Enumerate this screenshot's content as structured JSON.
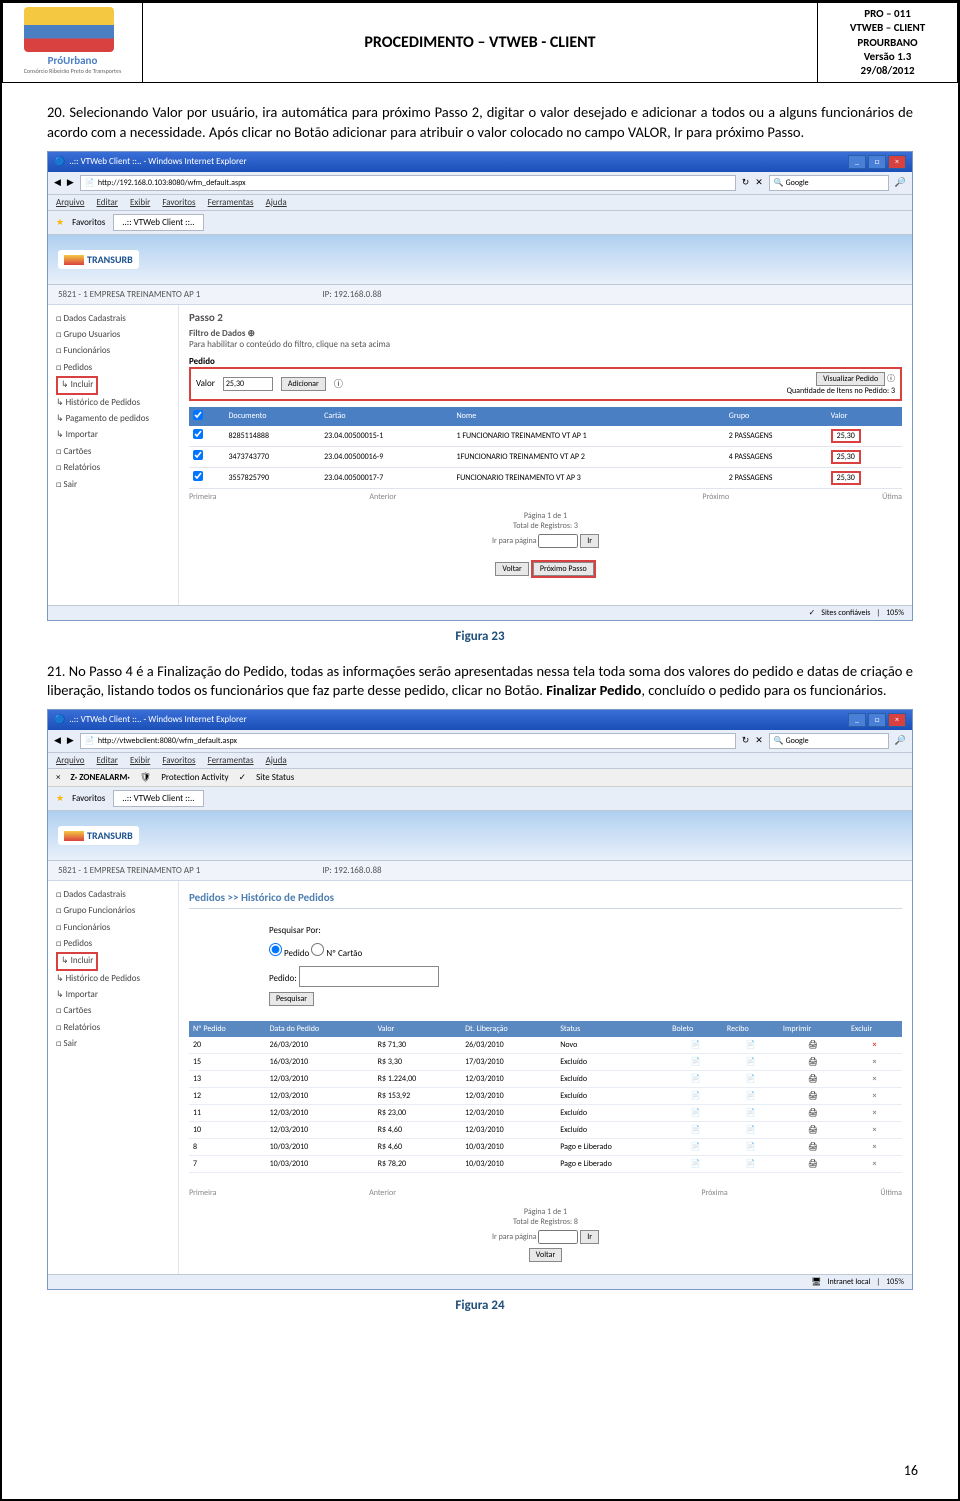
{
  "header": {
    "logo_name": "PróUrbano",
    "logo_sub": "Consórcio Ribeirão Preto de Transportes",
    "title": "PROCEDIMENTO – VTWEB - CLIENT",
    "meta_lines": [
      "PRO – 011",
      "VTWEB – CLIENT",
      "PROURBANO",
      "Versão 1.3",
      "29/08/2012"
    ]
  },
  "para20": {
    "num": "20.",
    "text": "Selecionando Valor por usuário, ira automática para próximo Passo 2, digitar o valor desejado e adicionar a todos ou a alguns funcionários de acordo com a necessidade. Após clicar no Botão adicionar para atribuir o valor colocado no campo VALOR, Ir para próximo Passo."
  },
  "fig23": {
    "caption": "Figura 23",
    "window_title": "..:: VTWeb Client ::.. - Windows Internet Explorer",
    "url": "http://192.168.0.103:8080/wfm_default.aspx",
    "search_placeholder": "Google",
    "menu": [
      "Arquivo",
      "Editar",
      "Exibir",
      "Favoritos",
      "Ferramentas",
      "Ajuda"
    ],
    "fav_label": "Favoritos",
    "fav_tab": "..:: VTWeb Client ::..",
    "banner_logo": "TRANSURB",
    "company": "5821 - 1 EMPRESA TREINAMENTO AP 1",
    "ip": "IP: 192.168.0.88",
    "sidebar": [
      "□ Dados Cadastrais",
      "□ Grupo Usuarios",
      "□ Funcionários",
      "□ Pedidos",
      "↳ Incluir",
      "↳ Histórico de Pedidos",
      "↳ Pagamento de pedidos",
      "↳ Importar",
      "□ Cartões",
      "□ Relatórios",
      "□ Sair"
    ],
    "passo": "Passo 2",
    "filtro_title": "Filtro de Dados ⊕",
    "filtro_sub": "Para habilitar o conteúdo do filtro, clique na seta acima",
    "pedido_label": "Pedido",
    "valor_label": "Valor",
    "valor_input": "25,30",
    "adicionar": "Adicionar",
    "vis_label": "Visualizar Pedido",
    "vis_sub": "Quantidade de Itens no Pedido: 3",
    "table_headers": [
      "☑",
      "Documento",
      "Cartão",
      "Nome",
      "Grupo",
      "Valor"
    ],
    "rows": [
      {
        "chk": true,
        "doc": "8285114888",
        "cartao": "23.04.00500015-1",
        "nome": "1 FUNCIONARIO TREINAMENTO VT AP 1",
        "grupo": "2 PASSAGENS",
        "valor": "25,30"
      },
      {
        "chk": true,
        "doc": "3473743770",
        "cartao": "23.04.00500016-9",
        "nome": "1FUNCIONARIO TREINAMENTO VT AP 2",
        "grupo": "4 PASSAGENS",
        "valor": "25,30"
      },
      {
        "chk": true,
        "doc": "3557825790",
        "cartao": "23.04.00500017-7",
        "nome": "FUNCIONARIO TREINAMENTO VT AP 3",
        "grupo": "2 PASSAGENS",
        "valor": "25,30"
      }
    ],
    "nav_primeira": "Primeira",
    "nav_anterior": "Anterior",
    "nav_proxima": "Próximo",
    "nav_ultima": "Útima",
    "pag_info": "Página 1 de 1",
    "total_reg": "Total de Registros: 3",
    "ir_para": "Ir para página",
    "ir_btn": "Ir",
    "voltar": "Voltar",
    "proximo": "Próximo Passo",
    "status_sites": "Sites confiáveis",
    "zoom": "105%"
  },
  "para21": {
    "num": "21.",
    "text_a": "No Passo 4 é a Finalização do Pedido, todas as informações serão apresentadas nessa tela toda soma dos valores do pedido e datas de criação e liberação, listando todos os funcionários que faz parte desse pedido, clicar no Botão. ",
    "bold": "Finalizar Pedido",
    "text_b": ", concluído o pedido para os funcionários."
  },
  "fig24": {
    "caption": "Figura 24",
    "window_title": "..:: VTWeb Client ::.. - Windows Internet Explorer",
    "url": "http://vtwebclient:8080/wfm_default.aspx",
    "search_placeholder": "Google",
    "menu": [
      "Arquivo",
      "Editar",
      "Exibir",
      "Favoritos",
      "Ferramentas",
      "Ajuda"
    ],
    "za_label": "ZONEALARM",
    "za_prot": "Protection Activity",
    "za_site": "Site Status",
    "fav_label": "Favoritos",
    "fav_tab": "..:: VTWeb Client ::..",
    "banner_logo": "TRANSURB",
    "company": "5821 - 1 EMPRESA TREINAMENTO AP 1",
    "ip": "IP: 192.168.0.88",
    "sidebar": [
      "□ Dados Cadastrais",
      "□ Grupo Funcionários",
      "□ Funcionários",
      "□ Pedidos",
      "↳ Incluir",
      "↳ Histórico de Pedidos",
      "↳ Importar",
      "□ Cartões",
      "□ Relatórios",
      "□ Sair"
    ],
    "breadcrumb": "Pedidos  >>  Histórico de Pedidos",
    "pesq_por": "Pesquisar Por:",
    "radio_pedido": "Pedido",
    "radio_cartao": "Nº Cartão",
    "pedido_lbl": "Pedido:",
    "pesquisar": "Pesquisar",
    "hist_headers": [
      "Nº Pedido",
      "Data do Pedido",
      "Valor",
      "Dt. Liberação",
      "Status",
      "Boleto",
      "Recibo",
      "Imprimir",
      "Excluir"
    ],
    "hist_rows": [
      {
        "n": "20",
        "data": "26/03/2010",
        "valor": "R$ 71,30",
        "lib": "26/03/2010",
        "status": "Novo",
        "excl": "×"
      },
      {
        "n": "15",
        "data": "16/03/2010",
        "valor": "R$ 3,30",
        "lib": "17/03/2010",
        "status": "Excluído",
        "excl": "×"
      },
      {
        "n": "13",
        "data": "12/03/2010",
        "valor": "R$ 1.224,00",
        "lib": "12/03/2010",
        "status": "Excluído",
        "excl": "×"
      },
      {
        "n": "12",
        "data": "12/03/2010",
        "valor": "R$ 153,92",
        "lib": "12/03/2010",
        "status": "Excluído",
        "excl": "×"
      },
      {
        "n": "11",
        "data": "12/03/2010",
        "valor": "R$ 23,00",
        "lib": "12/03/2010",
        "status": "Excluído",
        "excl": "×"
      },
      {
        "n": "10",
        "data": "12/03/2010",
        "valor": "R$ 4,60",
        "lib": "12/03/2010",
        "status": "Excluído",
        "excl": "×"
      },
      {
        "n": "8",
        "data": "10/03/2010",
        "valor": "R$ 4,60",
        "lib": "10/03/2010",
        "status": "Pago e Liberado",
        "excl": "×"
      },
      {
        "n": "7",
        "data": "10/03/2010",
        "valor": "R$ 78,20",
        "lib": "10/03/2010",
        "status": "Pago e Liberado",
        "excl": "×"
      }
    ],
    "nav_primeira": "Primeira",
    "nav_anterior": "Anterior",
    "nav_proxima": "Próxima",
    "nav_ultima": "Última",
    "pag_info": "Página 1 de 1",
    "total_reg": "Total de Registros: 8",
    "ir_para": "Ir para página",
    "ir_btn": "Ir",
    "voltar": "Voltar",
    "status_intranet": "Intranet local",
    "zoom": "105%"
  },
  "page_num": "16"
}
